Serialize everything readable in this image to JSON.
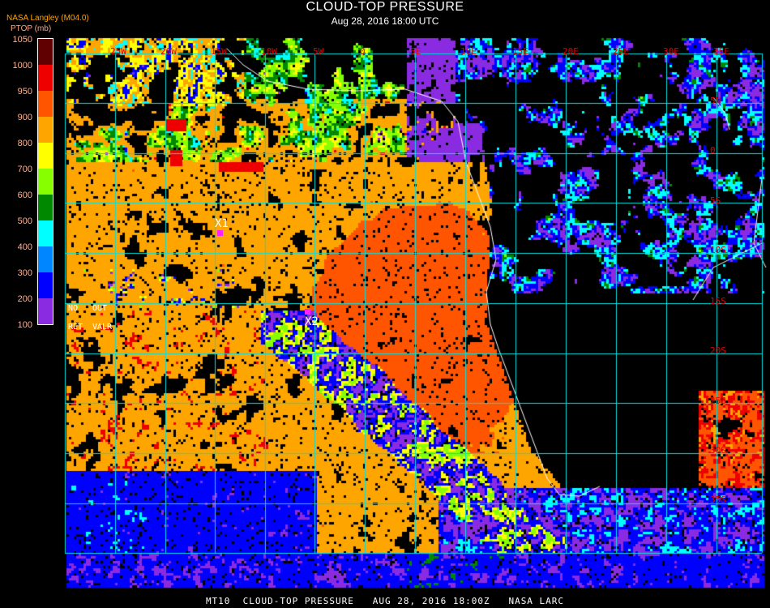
{
  "header": {
    "title": "CLOUD-TOP PRESSURE",
    "subtitle": "Aug 28, 2016 18:00 UTC",
    "agency": "NASA Langley (M04.0)"
  },
  "legend": {
    "units": "PTOP (mb)",
    "ticks": [
      "1050",
      "1000",
      "950",
      "900",
      "800",
      "700",
      "600",
      "500",
      "400",
      "300",
      "200",
      "100"
    ],
    "colors": [
      "#8a2be2",
      "#0000ff",
      "#0087ff",
      "#00ffff",
      "#008800",
      "#88ff00",
      "#ffff00",
      "#ffa500",
      "#ff5500",
      "#ee0000",
      "#600000"
    ],
    "no_data": {
      "no": "NO",
      "out": "OUT",
      "ret": "RET",
      "valr": "VALR"
    }
  },
  "map": {
    "longitude_labels": [
      "25W",
      "20W",
      "15W",
      "10W",
      "5W",
      "0",
      "5E",
      "10E",
      "15E",
      "20E",
      "25E",
      "30E",
      "35E"
    ],
    "latitude_labels": [
      "5N",
      "0",
      "5S",
      "10S",
      "15S",
      "20S",
      "25S",
      "30S",
      "35S"
    ],
    "grid_color": "#00e0e0",
    "label_color": "#e00000",
    "coastline_color": "#ffffff",
    "markers": [
      {
        "label": "X1"
      },
      {
        "label": "X2"
      }
    ]
  },
  "footer": "MT10  CLOUD-TOP PRESSURE   AUG 28, 2016 18:00Z   NASA LARC"
}
